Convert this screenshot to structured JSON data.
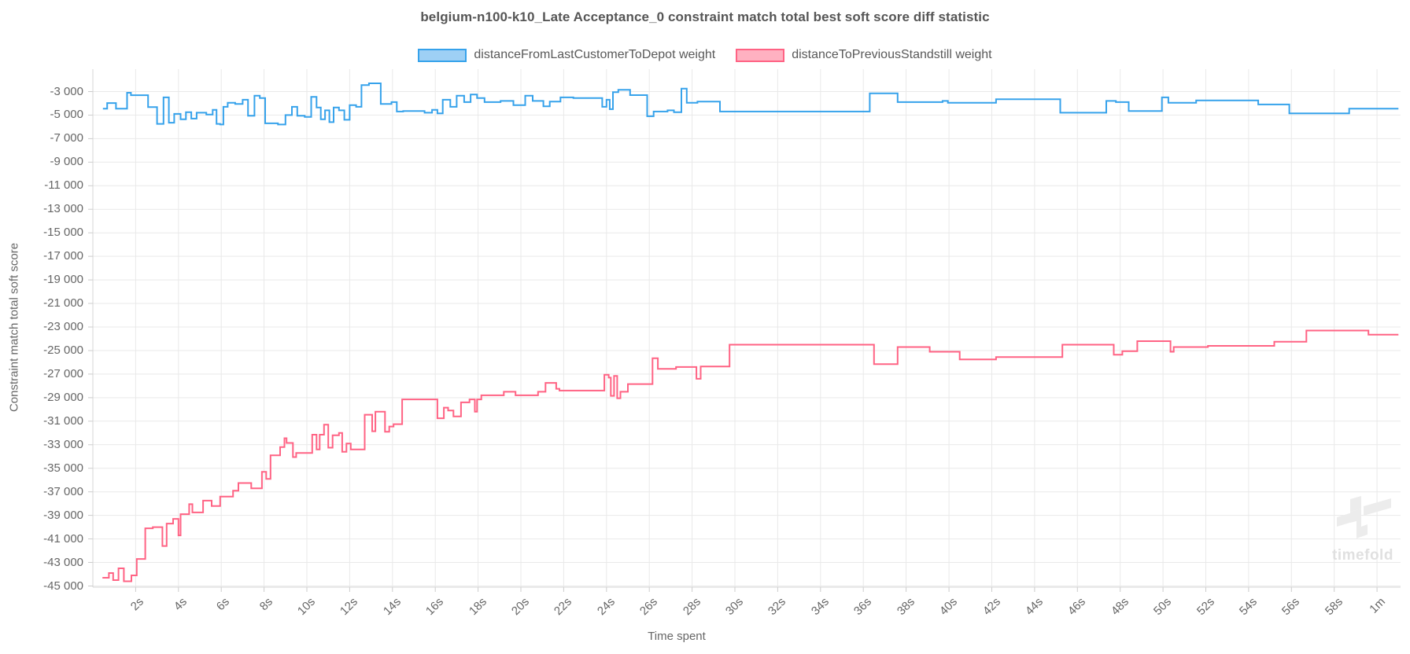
{
  "chart": {
    "title": "belgium-n100-k10_Late Acceptance_0 constraint match total best soft score diff statistic",
    "legend": [
      {
        "label": "distanceFromLastCustomerToDepot weight",
        "fill": "#9ed0f5",
        "border": "#36a2eb"
      },
      {
        "label": "distanceToPreviousStandstill weight",
        "fill": "#ffb1c1",
        "border": "#ff6384"
      }
    ],
    "watermark_text": "timefold",
    "colors": {
      "gridline": "#e9e9e9",
      "axis_border": "#d4d4d4",
      "tick_mark": "#cccccc"
    }
  },
  "chart_data": {
    "type": "line",
    "step": true,
    "title": "belgium-n100-k10_Late Acceptance_0 constraint match total best soft score diff statistic",
    "xlabel": "Time spent",
    "ylabel": "Constraint match total soft score",
    "x_unit": "seconds",
    "xlim": [
      0,
      61.1
    ],
    "ylim": [
      -45100,
      -1100
    ],
    "grid": true,
    "legend_position": "top",
    "x_ticks": {
      "seconds": [
        2,
        4,
        6,
        8,
        10,
        12,
        14,
        16,
        18,
        20,
        22,
        24,
        26,
        28,
        30,
        32,
        34,
        36,
        38,
        40,
        42,
        44,
        46,
        48,
        50,
        52,
        54,
        56,
        58,
        60
      ],
      "labels": [
        "2s",
        "4s",
        "6s",
        "8s",
        "10s",
        "12s",
        "14s",
        "16s",
        "18s",
        "20s",
        "22s",
        "24s",
        "26s",
        "28s",
        "30s",
        "32s",
        "34s",
        "36s",
        "38s",
        "40s",
        "42s",
        "44s",
        "46s",
        "48s",
        "50s",
        "52s",
        "54s",
        "56s",
        "58s",
        "1m"
      ]
    },
    "y_ticks": {
      "values": [
        -3000,
        -5000,
        -7000,
        -9000,
        -11000,
        -13000,
        -15000,
        -17000,
        -19000,
        -21000,
        -23000,
        -25000,
        -27000,
        -29000,
        -31000,
        -33000,
        -35000,
        -37000,
        -39000,
        -41000,
        -43000,
        -45000
      ],
      "labels": [
        "-3 000",
        "-5 000",
        "-7 000",
        "-9 000",
        "-11 000",
        "-13 000",
        "-15 000",
        "-17 000",
        "-19 000",
        "-21 000",
        "-23 000",
        "-25 000",
        "-27 000",
        "-29 000",
        "-31 000",
        "-33 000",
        "-35 000",
        "-37 000",
        "-39 000",
        "-41 000",
        "-43 000",
        "-45 000"
      ]
    },
    "series": [
      {
        "name": "distanceFromLastCustomerToDepot weight",
        "color": "#36a2eb",
        "points": [
          [
            0.47,
            -4450
          ],
          [
            0.67,
            -3980
          ],
          [
            1.08,
            -4450
          ],
          [
            1.6,
            -3100
          ],
          [
            1.78,
            -3310
          ],
          [
            2.58,
            -4320
          ],
          [
            3.0,
            -5750
          ],
          [
            3.3,
            -3500
          ],
          [
            3.55,
            -5650
          ],
          [
            3.8,
            -4900
          ],
          [
            4.1,
            -5350
          ],
          [
            4.35,
            -4750
          ],
          [
            4.6,
            -5300
          ],
          [
            4.85,
            -4800
          ],
          [
            5.3,
            -4950
          ],
          [
            5.6,
            -4550
          ],
          [
            5.78,
            -5750
          ],
          [
            5.95,
            -5800
          ],
          [
            6.1,
            -4300
          ],
          [
            6.3,
            -3950
          ],
          [
            6.65,
            -4050
          ],
          [
            7.0,
            -3700
          ],
          [
            7.25,
            -5050
          ],
          [
            7.55,
            -3350
          ],
          [
            7.8,
            -3550
          ],
          [
            8.05,
            -5700
          ],
          [
            8.65,
            -5800
          ],
          [
            9.0,
            -5000
          ],
          [
            9.3,
            -4300
          ],
          [
            9.55,
            -5050
          ],
          [
            9.9,
            -5150
          ],
          [
            10.2,
            -3450
          ],
          [
            10.45,
            -4350
          ],
          [
            10.65,
            -5350
          ],
          [
            10.85,
            -4600
          ],
          [
            11.05,
            -5600
          ],
          [
            11.25,
            -4350
          ],
          [
            11.5,
            -4600
          ],
          [
            11.75,
            -5400
          ],
          [
            12.0,
            -4150
          ],
          [
            12.3,
            -4300
          ],
          [
            12.55,
            -2450
          ],
          [
            12.9,
            -2300
          ],
          [
            13.45,
            -4050
          ],
          [
            13.95,
            -3900
          ],
          [
            14.2,
            -4700
          ],
          [
            14.5,
            -4650
          ],
          [
            15.5,
            -4800
          ],
          [
            15.85,
            -4550
          ],
          [
            16.1,
            -4850
          ],
          [
            16.35,
            -3700
          ],
          [
            16.7,
            -4300
          ],
          [
            17.0,
            -3350
          ],
          [
            17.35,
            -3900
          ],
          [
            17.65,
            -3250
          ],
          [
            17.95,
            -3550
          ],
          [
            18.3,
            -3900
          ],
          [
            19.05,
            -3800
          ],
          [
            19.65,
            -4150
          ],
          [
            20.2,
            -3350
          ],
          [
            20.55,
            -3800
          ],
          [
            21.05,
            -4250
          ],
          [
            21.35,
            -3850
          ],
          [
            21.85,
            -3500
          ],
          [
            22.45,
            -3550
          ],
          [
            23.8,
            -4300
          ],
          [
            24.0,
            -3700
          ],
          [
            24.15,
            -4500
          ],
          [
            24.3,
            -3050
          ],
          [
            24.55,
            -2850
          ],
          [
            25.1,
            -3300
          ],
          [
            25.9,
            -5100
          ],
          [
            26.2,
            -4700
          ],
          [
            26.85,
            -4600
          ],
          [
            27.15,
            -4750
          ],
          [
            27.5,
            -2750
          ],
          [
            27.75,
            -3950
          ],
          [
            28.25,
            -3850
          ],
          [
            29.3,
            -4700
          ],
          [
            36.3,
            -3150
          ],
          [
            37.6,
            -3900
          ],
          [
            39.7,
            -3800
          ],
          [
            39.95,
            -3950
          ],
          [
            42.2,
            -3650
          ],
          [
            45.2,
            -4800
          ],
          [
            47.35,
            -3800
          ],
          [
            47.8,
            -3900
          ],
          [
            48.4,
            -4650
          ],
          [
            49.95,
            -3500
          ],
          [
            50.25,
            -3950
          ],
          [
            51.55,
            -3750
          ],
          [
            54.45,
            -4100
          ],
          [
            55.9,
            -4850
          ],
          [
            58.7,
            -4450
          ],
          [
            61.0,
            -4450
          ]
        ]
      },
      {
        "name": "distanceToPreviousStandstill weight",
        "color": "#ff6384",
        "points": [
          [
            0.45,
            -44300
          ],
          [
            0.75,
            -43900
          ],
          [
            0.95,
            -44500
          ],
          [
            1.2,
            -43500
          ],
          [
            1.45,
            -44600
          ],
          [
            1.8,
            -44100
          ],
          [
            2.05,
            -42700
          ],
          [
            2.45,
            -40100
          ],
          [
            2.8,
            -40000
          ],
          [
            3.25,
            -41600
          ],
          [
            3.45,
            -39700
          ],
          [
            3.75,
            -39300
          ],
          [
            4.0,
            -40700
          ],
          [
            4.1,
            -38900
          ],
          [
            4.5,
            -38050
          ],
          [
            4.65,
            -38750
          ],
          [
            5.15,
            -37750
          ],
          [
            5.55,
            -38200
          ],
          [
            5.95,
            -37400
          ],
          [
            6.55,
            -36900
          ],
          [
            6.8,
            -36250
          ],
          [
            7.4,
            -36700
          ],
          [
            7.9,
            -35300
          ],
          [
            8.1,
            -35900
          ],
          [
            8.3,
            -33900
          ],
          [
            8.75,
            -33200
          ],
          [
            8.95,
            -32450
          ],
          [
            9.05,
            -32850
          ],
          [
            9.35,
            -34050
          ],
          [
            9.5,
            -33700
          ],
          [
            10.25,
            -32150
          ],
          [
            10.45,
            -33400
          ],
          [
            10.6,
            -32150
          ],
          [
            10.8,
            -31300
          ],
          [
            11.0,
            -33250
          ],
          [
            11.2,
            -32200
          ],
          [
            11.5,
            -32000
          ],
          [
            11.65,
            -33600
          ],
          [
            11.85,
            -32900
          ],
          [
            12.05,
            -33400
          ],
          [
            12.7,
            -30450
          ],
          [
            13.05,
            -31850
          ],
          [
            13.2,
            -30200
          ],
          [
            13.65,
            -31900
          ],
          [
            13.85,
            -31450
          ],
          [
            14.05,
            -31250
          ],
          [
            14.45,
            -29150
          ],
          [
            16.1,
            -30750
          ],
          [
            16.4,
            -29850
          ],
          [
            16.6,
            -30100
          ],
          [
            16.85,
            -30600
          ],
          [
            17.2,
            -29400
          ],
          [
            17.6,
            -29150
          ],
          [
            17.85,
            -30200
          ],
          [
            17.95,
            -29150
          ],
          [
            18.15,
            -28800
          ],
          [
            19.2,
            -28500
          ],
          [
            19.75,
            -28800
          ],
          [
            20.8,
            -28500
          ],
          [
            21.15,
            -27750
          ],
          [
            21.65,
            -28250
          ],
          [
            21.8,
            -28400
          ],
          [
            23.9,
            -27050
          ],
          [
            24.1,
            -27300
          ],
          [
            24.2,
            -28850
          ],
          [
            24.35,
            -27150
          ],
          [
            24.5,
            -29050
          ],
          [
            24.65,
            -28500
          ],
          [
            25.0,
            -27850
          ],
          [
            26.15,
            -25650
          ],
          [
            26.4,
            -26550
          ],
          [
            27.25,
            -26400
          ],
          [
            28.2,
            -27400
          ],
          [
            28.4,
            -26350
          ],
          [
            29.75,
            -24500
          ],
          [
            36.5,
            -26150
          ],
          [
            37.6,
            -24700
          ],
          [
            39.1,
            -25100
          ],
          [
            40.5,
            -25750
          ],
          [
            42.2,
            -25550
          ],
          [
            45.3,
            -24500
          ],
          [
            47.7,
            -25350
          ],
          [
            48.1,
            -25050
          ],
          [
            48.8,
            -24200
          ],
          [
            50.35,
            -25100
          ],
          [
            50.5,
            -24700
          ],
          [
            52.1,
            -24600
          ],
          [
            55.2,
            -24250
          ],
          [
            56.7,
            -23300
          ],
          [
            59.6,
            -23650
          ],
          [
            61.0,
            -23650
          ]
        ]
      }
    ]
  }
}
